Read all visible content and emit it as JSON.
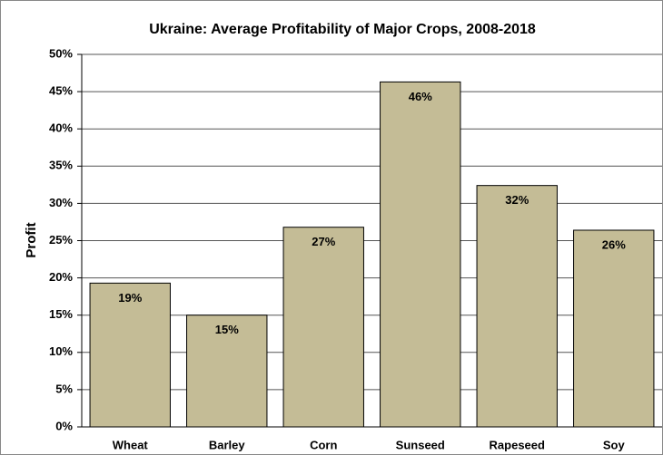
{
  "chart_data": {
    "type": "bar",
    "title": "Ukraine: Average Profitability of Major Crops, 2008-2018",
    "y_label": "Profit",
    "categories": [
      "Wheat",
      "Barley",
      "Corn",
      "Sunseed",
      "Rapeseed",
      "Soy"
    ],
    "values": [
      19.3,
      15.0,
      26.8,
      46.3,
      32.4,
      26.4
    ],
    "value_labels": [
      "19%",
      "15%",
      "27%",
      "46%",
      "32%",
      "26%"
    ],
    "color": "#c4bc96",
    "ylim": [
      0,
      50
    ],
    "yticks": [
      {
        "value": 0,
        "label": "0%"
      },
      {
        "value": 5,
        "label": "5%"
      },
      {
        "value": 10,
        "label": "10%"
      },
      {
        "value": 15,
        "label": "15%"
      },
      {
        "value": 20,
        "label": "20%"
      },
      {
        "value": 25,
        "label": "25%"
      },
      {
        "value": 30,
        "label": "30%"
      },
      {
        "value": 35,
        "label": "35%"
      },
      {
        "value": 40,
        "label": "40%"
      },
      {
        "value": 45,
        "label": "45%"
      },
      {
        "value": 50,
        "label": "50%"
      }
    ],
    "grid": true
  }
}
